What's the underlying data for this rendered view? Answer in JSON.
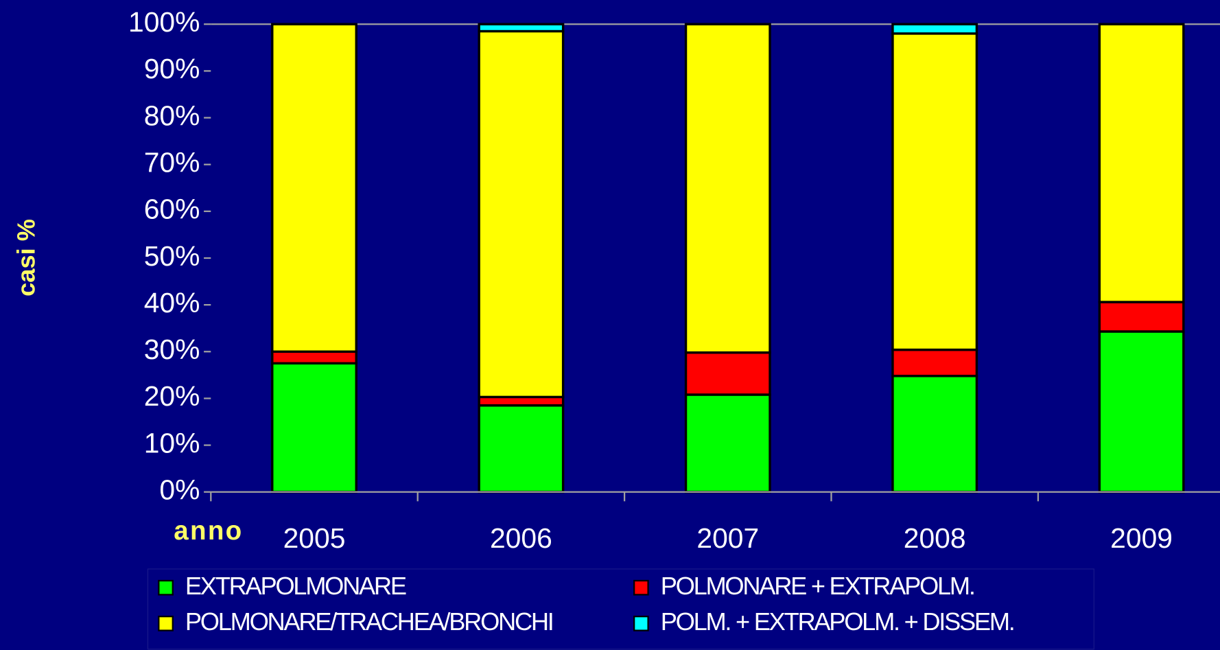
{
  "chart_data": {
    "type": "stacked_bar",
    "y_label": "casi %",
    "x_label": "anno",
    "categories": [
      "2005",
      "2006",
      "2007",
      "2008",
      "2009"
    ],
    "series": [
      {
        "name": "EXTRAPOLMONARE",
        "color": "#00ff00",
        "values": [
          27.5,
          18.5,
          20.8,
          24.8,
          34.3
        ]
      },
      {
        "name": "POLMONARE + EXTRAPOLM.",
        "color": "#ff0000",
        "values": [
          2.5,
          1.8,
          9.0,
          5.6,
          6.3
        ]
      },
      {
        "name": "POLMONARE/TRACHEA/BRONCHI",
        "color": "#ffff00",
        "values": [
          70.0,
          78.2,
          70.2,
          67.6,
          59.4
        ]
      },
      {
        "name": "POLM. + EXTRAPOLM. + DISSEM.",
        "color": "#00ffff",
        "values": [
          0,
          1.5,
          0,
          2.0,
          0
        ]
      }
    ],
    "ylim": [
      0,
      100
    ],
    "yticks": [
      {
        "value": 0,
        "label": "0%"
      },
      {
        "value": 10,
        "label": "10%"
      },
      {
        "value": 20,
        "label": "20%"
      },
      {
        "value": 30,
        "label": "30%"
      },
      {
        "value": 40,
        "label": "40%"
      },
      {
        "value": 50,
        "label": "50%"
      },
      {
        "value": 60,
        "label": "60%"
      },
      {
        "value": 70,
        "label": "70%"
      },
      {
        "value": 80,
        "label": "80%"
      },
      {
        "value": 90,
        "label": "90%"
      },
      {
        "value": 100,
        "label": "100%"
      }
    ],
    "grid": false,
    "legend": "bottom"
  }
}
